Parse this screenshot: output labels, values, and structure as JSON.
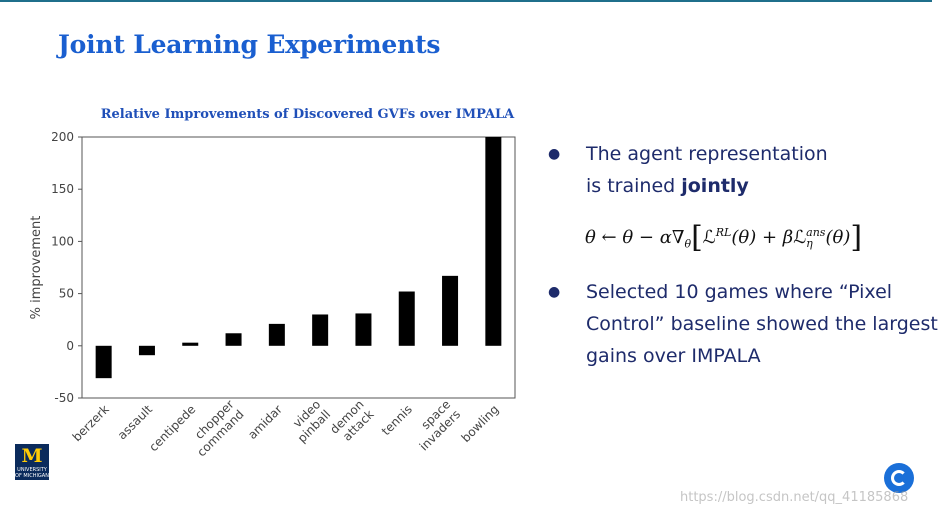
{
  "slide": {
    "title": "Joint Learning Experiments",
    "bullets": [
      {
        "text_a": "The agent representation",
        "text_b": "is trained ",
        "text_b_bold": "jointly"
      },
      {
        "text": "Selected 10 games where “Pixel Control” baseline showed the largest gains over IMPALA"
      }
    ],
    "formula": {
      "lhs": "θ ← θ − α∇",
      "sub_theta": "θ",
      "L_RL": "ℒ",
      "RL": "RL",
      "mid": "(θ) + β",
      "L_ans": "ℒ",
      "ans": "ans",
      "eta": "η",
      "end": "(θ)",
      "open": "[",
      "close": "]"
    },
    "logo_text": "M",
    "logo_sub": "UNIVERSITY OF MICHIGAN",
    "watermark": "https://blog.csdn.net/qq_41185868",
    "colors": {
      "title": "#1a5fd0",
      "text": "#1e2b6b",
      "bar": "#000000",
      "logo_bg": "#0b2b5c",
      "logo_fg": "#ffcb05",
      "deepmind": "#1a6fd8"
    }
  },
  "chart_data": {
    "type": "bar",
    "title": "Relative Improvements of Discovered GVFs over IMPALA",
    "xlabel": "",
    "ylabel": "% improvement",
    "ylim": [
      -50,
      200
    ],
    "yticks": [
      -50,
      0,
      50,
      100,
      150,
      200
    ],
    "categories": [
      "berzerk",
      "assault",
      "centipede",
      "chopper command",
      "amidar",
      "video pinball",
      "demon attack",
      "tennis",
      "space invaders",
      "bowling"
    ],
    "category_lines": [
      [
        "berzerk"
      ],
      [
        "assault"
      ],
      [
        "centipede"
      ],
      [
        "chopper",
        "command"
      ],
      [
        "amidar"
      ],
      [
        "video",
        "pinball"
      ],
      [
        "demon",
        "attack"
      ],
      [
        "tennis"
      ],
      [
        "space",
        "invaders"
      ],
      [
        "bowling"
      ]
    ],
    "values": [
      -31,
      -9,
      3,
      12,
      21,
      30,
      31,
      52,
      67,
      200
    ],
    "grid": false
  }
}
